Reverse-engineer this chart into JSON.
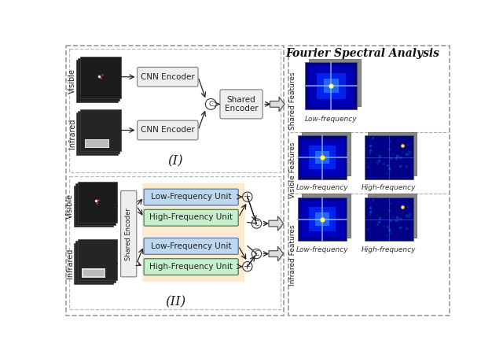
{
  "title": "Fourier Spectral Analysis",
  "bg_color": "#ffffff",
  "section_I_label": "(I)",
  "section_II_label": "(II)",
  "visible_label": "Visible",
  "infrared_label": "Infrared",
  "cnn_encoder_label": "CNN Encoder",
  "shared_encoder_label_I": "Shared\nEncoder",
  "shared_encoder_label_II": "Shared Encoder",
  "low_freq_unit_label": "Low-Frequency Unit",
  "high_freq_unit_label": "High-Frequency Unit",
  "shared_features_label": "Shared Features",
  "visible_features_label": "Visible Features",
  "infrared_features_label": "Infrared Features",
  "low_frequency_label": "Low-frequency",
  "high_frequency_label": "High-frequency",
  "orange_bg": "#FDEBD0",
  "blue_box_color": "#BDD7EE",
  "green_box_color": "#C6EFCE",
  "gray_box_color": "#E8E8E8",
  "dashed_border_color": "#999999",
  "font_size_label": 7,
  "font_size_box": 7.5,
  "font_size_title": 10
}
